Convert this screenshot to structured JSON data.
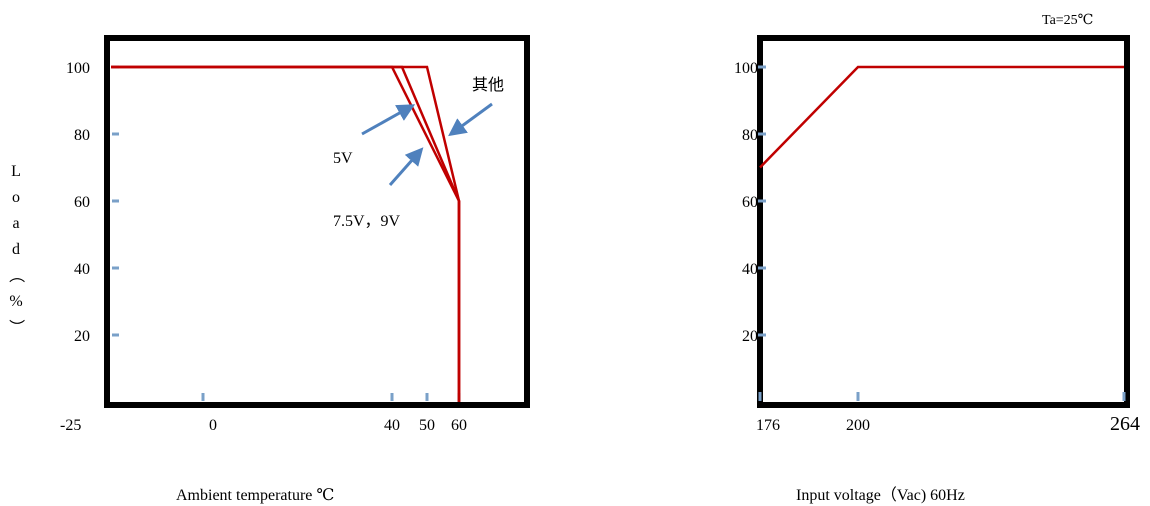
{
  "chart_data": [
    {
      "type": "line",
      "xlabel": "Ambient temperature ℃",
      "ylabel_chars": [
        "L",
        "o",
        "a",
        "d",
        "（",
        "%",
        "）"
      ],
      "x_ticks": [
        -25,
        0,
        40,
        50,
        60
      ],
      "x_tick_labels": [
        "-25",
        "0",
        "40",
        "50",
        "60"
      ],
      "y_ticks": [
        20,
        40,
        60,
        80,
        100
      ],
      "y_tick_labels": [
        "20",
        "40",
        "60",
        "80",
        "100"
      ],
      "xlim": [
        -25,
        60
      ],
      "ylim": [
        0,
        100
      ],
      "series": [
        {
          "name": "5V",
          "x": [
            -25,
            40,
            60,
            60
          ],
          "y": [
            100,
            100,
            60,
            0
          ]
        },
        {
          "name": "7.5V，9V",
          "x": [
            -25,
            44,
            60,
            60
          ],
          "y": [
            100,
            100,
            60,
            0
          ]
        },
        {
          "name": "其他",
          "x": [
            -25,
            50,
            60,
            60
          ],
          "y": [
            100,
            100,
            60,
            0
          ]
        }
      ],
      "annotations": [
        {
          "text": "其他"
        },
        {
          "text": "5V"
        },
        {
          "text": "7.5V，9V"
        }
      ],
      "grid": false
    },
    {
      "type": "line",
      "xlabel": "Input voltage（Vac) 60Hz",
      "note": "Ta=25℃",
      "x_ticks": [
        176,
        200,
        264
      ],
      "x_tick_labels": [
        "176",
        "200",
        "264"
      ],
      "y_ticks": [
        20,
        40,
        60,
        80,
        100
      ],
      "y_tick_labels": [
        "20",
        "40",
        "60",
        "80",
        "100"
      ],
      "xlim": [
        176,
        264
      ],
      "ylim": [
        0,
        100
      ],
      "series": [
        {
          "x": [
            176,
            200,
            264
          ],
          "y": [
            70,
            100,
            100
          ]
        }
      ],
      "grid": false
    }
  ],
  "colors": {
    "line": "#c00000",
    "arrow": "#4f81bd",
    "tick": "#7aa0c8",
    "frame": "#000000"
  }
}
